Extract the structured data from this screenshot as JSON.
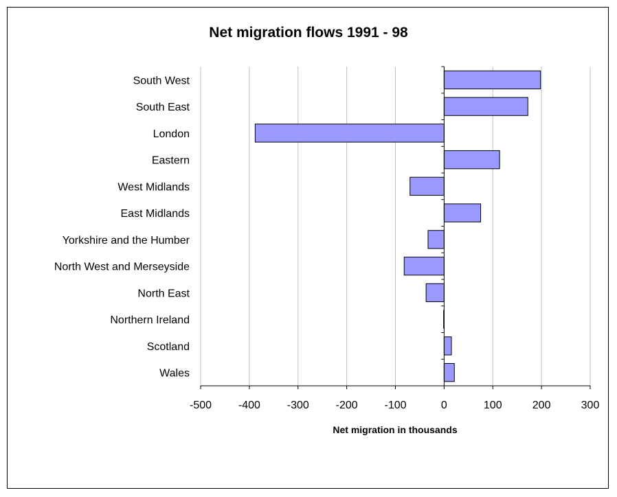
{
  "chart_data": {
    "type": "bar",
    "orientation": "horizontal",
    "title": "Net migration flows 1991 - 98",
    "xlabel": "Net migration in thousands",
    "ylabel": "",
    "categories": [
      "South West",
      "South East",
      "London",
      "Eastern",
      "West Midlands",
      "East Midlands",
      "Yorkshire and the Humber",
      "North West and Merseyside",
      "North East",
      "Northern Ireland",
      "Scotland",
      "Wales"
    ],
    "values": [
      198,
      172,
      -388,
      114,
      -70,
      75,
      -33,
      -82,
      -37,
      -1,
      15,
      21
    ],
    "xlim": [
      -500,
      300
    ],
    "xticks": [
      "-500",
      "-400",
      "-300",
      "-200",
      "-100",
      "0",
      "100",
      "200",
      "300"
    ],
    "grid": "vertical",
    "legend": "none",
    "bar_color": "#9999ff",
    "bar_border_color": "#000000",
    "grid_color": "#c0c0c0"
  }
}
